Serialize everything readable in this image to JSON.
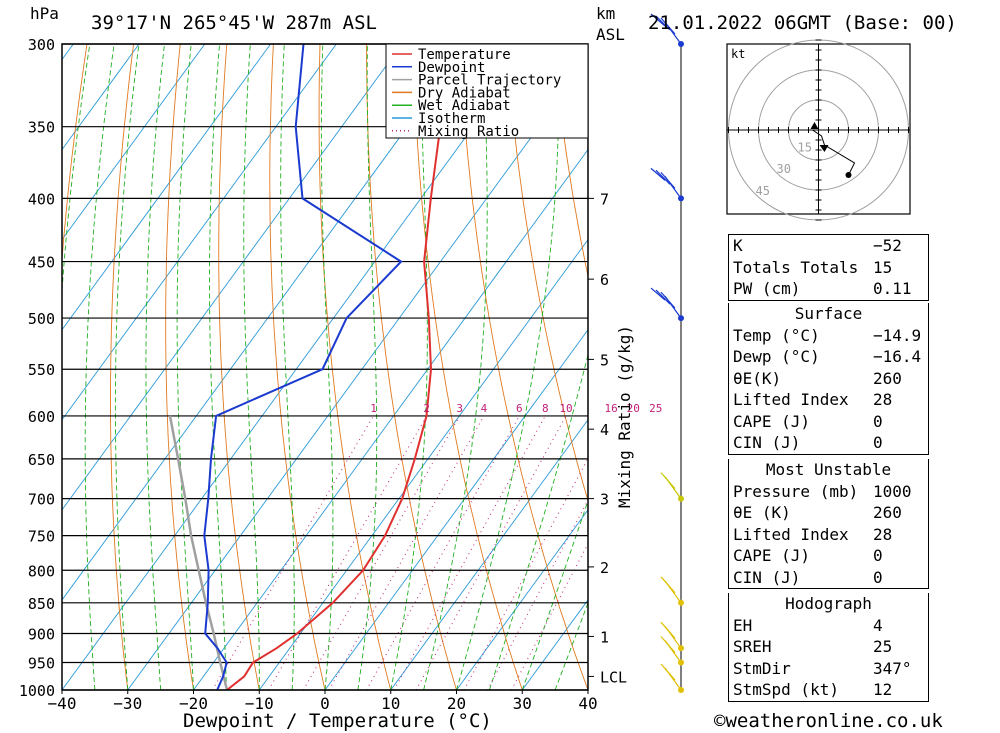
{
  "header": {
    "pressure_unit": "hPa",
    "location": "39°17'N 265°45'W 287m ASL",
    "height_unit": "km",
    "height_unit_2": "ASL",
    "datetime": "21.01.2022 06GMT (Base: 00)"
  },
  "legend": [
    {
      "label": "Temperature",
      "color": "#e03030",
      "style": "solid"
    },
    {
      "label": "Dewpoint",
      "color": "#1a3ad0",
      "style": "solid"
    },
    {
      "label": "Parcel Trajectory",
      "color": "#a0a0a0",
      "style": "solid"
    },
    {
      "label": "Dry Adiabat",
      "color": "#e07a20",
      "style": "solid"
    },
    {
      "label": "Wet Adiabat",
      "color": "#20b020",
      "style": "solid"
    },
    {
      "label": "Isotherm",
      "color": "#2a9ad8",
      "style": "solid"
    },
    {
      "label": "Mixing Ratio",
      "color": "#c0207a",
      "style": "dotted"
    }
  ],
  "chart_data": {
    "type": "skew-t",
    "xlabel": "Dewpoint / Temperature (°C)",
    "ylabel_left": "hPa",
    "ylabel_right": "Mixing Ratio (g/kg)",
    "pressure_levels": [
      300,
      350,
      400,
      450,
      500,
      550,
      600,
      650,
      700,
      750,
      800,
      850,
      900,
      950,
      1000
    ],
    "temperature_ticks": [
      -40,
      -30,
      -20,
      -10,
      0,
      10,
      20,
      30,
      40
    ],
    "xlim": [
      -40,
      40
    ],
    "ylim": [
      1000,
      300
    ],
    "height_ticks": [
      {
        "label": "7",
        "p": 400
      },
      {
        "label": "6",
        "p": 465
      },
      {
        "label": "5",
        "p": 540
      },
      {
        "label": "4",
        "p": 615
      },
      {
        "label": "3",
        "p": 700
      },
      {
        "label": "2",
        "p": 795
      },
      {
        "label": "1",
        "p": 905
      },
      {
        "label": "LCL",
        "p": 975
      }
    ],
    "mixing_ratio_labels": [
      "1",
      "2",
      "3",
      "4",
      "6",
      "8",
      "10",
      "16",
      "20",
      "25"
    ],
    "mixing_ratio_values": [
      1,
      2,
      3,
      4,
      6,
      8,
      10,
      16,
      20,
      25
    ],
    "temperature_profile": [
      {
        "p": 1000,
        "t": -14.9
      },
      {
        "p": 975,
        "t": -13.8
      },
      {
        "p": 950,
        "t": -14.0
      },
      {
        "p": 925,
        "t": -12.0
      },
      {
        "p": 900,
        "t": -10.5
      },
      {
        "p": 850,
        "t": -8.5
      },
      {
        "p": 800,
        "t": -7.5
      },
      {
        "p": 750,
        "t": -8.0
      },
      {
        "p": 700,
        "t": -9.5
      },
      {
        "p": 650,
        "t": -12.0
      },
      {
        "p": 600,
        "t": -15.0
      },
      {
        "p": 550,
        "t": -19.5
      },
      {
        "p": 500,
        "t": -25.5
      },
      {
        "p": 450,
        "t": -32.5
      },
      {
        "p": 400,
        "t": -38.5
      },
      {
        "p": 350,
        "t": -45.0
      },
      {
        "p": 300,
        "t": -50.5
      }
    ],
    "dewpoint_profile": [
      {
        "p": 1000,
        "t": -16.4
      },
      {
        "p": 975,
        "t": -17.0
      },
      {
        "p": 950,
        "t": -18.0
      },
      {
        "p": 925,
        "t": -21.0
      },
      {
        "p": 900,
        "t": -24.5
      },
      {
        "p": 850,
        "t": -27.5
      },
      {
        "p": 800,
        "t": -31.0
      },
      {
        "p": 750,
        "t": -35.5
      },
      {
        "p": 700,
        "t": -39.0
      },
      {
        "p": 650,
        "t": -43.0
      },
      {
        "p": 600,
        "t": -47.0
      },
      {
        "p": 550,
        "t": -36.0
      },
      {
        "p": 500,
        "t": -38.0
      },
      {
        "p": 450,
        "t": -36.0
      },
      {
        "p": 400,
        "t": -58.0
      },
      {
        "p": 350,
        "t": -67.0
      },
      {
        "p": 300,
        "t": -75.0
      }
    ],
    "parcel_trajectory": [
      {
        "p": 1000,
        "t": -14.9
      },
      {
        "p": 950,
        "t": -19.0
      },
      {
        "p": 900,
        "t": -23.2
      },
      {
        "p": 850,
        "t": -27.8
      },
      {
        "p": 800,
        "t": -32.5
      },
      {
        "p": 750,
        "t": -37.5
      },
      {
        "p": 700,
        "t": -42.5
      },
      {
        "p": 650,
        "t": -48.0
      },
      {
        "p": 600,
        "t": -54.0
      }
    ]
  },
  "hodograph": {
    "unit": "kt",
    "ring_labels": [
      "15",
      "30",
      "45"
    ],
    "points": [
      {
        "u": -2,
        "v": 0
      },
      {
        "u": 1,
        "v": -2
      },
      {
        "u": 2,
        "v": -5
      },
      {
        "u": 12,
        "v": -11
      },
      {
        "u": 10,
        "v": -15
      }
    ]
  },
  "winds": [
    {
      "p": 300,
      "color": "#1a3ad0",
      "barbs": 3
    },
    {
      "p": 400,
      "color": "#1a3ad0",
      "barbs": 3
    },
    {
      "p": 500,
      "color": "#1a3ad0",
      "barbs": 3
    },
    {
      "p": 700,
      "color": "#c8c800",
      "barbs": 1
    },
    {
      "p": 850,
      "color": "#e0c000",
      "barbs": 1
    },
    {
      "p": 925,
      "color": "#e0c000",
      "barbs": 1
    },
    {
      "p": 950,
      "color": "#e0c000",
      "barbs": 1
    },
    {
      "p": 1000,
      "color": "#e0c000",
      "barbs": 1
    }
  ],
  "indices": {
    "top": [
      {
        "label": "K",
        "value": "-52"
      },
      {
        "label": "Totals Totals",
        "value": "15"
      },
      {
        "label": "PW (cm)",
        "value": "0.11"
      }
    ],
    "surface": {
      "title": "Surface",
      "rows": [
        {
          "label": "Temp (°C)",
          "value": "-14.9"
        },
        {
          "label": "Dewp (°C)",
          "value": "-16.4"
        },
        {
          "label": "θE(K)",
          "value": "260"
        },
        {
          "label": "Lifted Index",
          "value": "28"
        },
        {
          "label": "CAPE (J)",
          "value": "0"
        },
        {
          "label": "CIN (J)",
          "value": "0"
        }
      ]
    },
    "most_unstable": {
      "title": "Most Unstable",
      "rows": [
        {
          "label": "Pressure (mb)",
          "value": "1000"
        },
        {
          "label": "θE (K)",
          "value": "260"
        },
        {
          "label": "Lifted Index",
          "value": "28"
        },
        {
          "label": "CAPE (J)",
          "value": "0"
        },
        {
          "label": "CIN (J)",
          "value": "0"
        }
      ]
    },
    "hodograph": {
      "title": "Hodograph",
      "rows": [
        {
          "label": "EH",
          "value": "4"
        },
        {
          "label": "SREH",
          "value": "25"
        },
        {
          "label": "StmDir",
          "value": "347°"
        },
        {
          "label": "StmSpd (kt)",
          "value": "12"
        }
      ]
    }
  },
  "copyright": "©weatheronline.co.uk"
}
